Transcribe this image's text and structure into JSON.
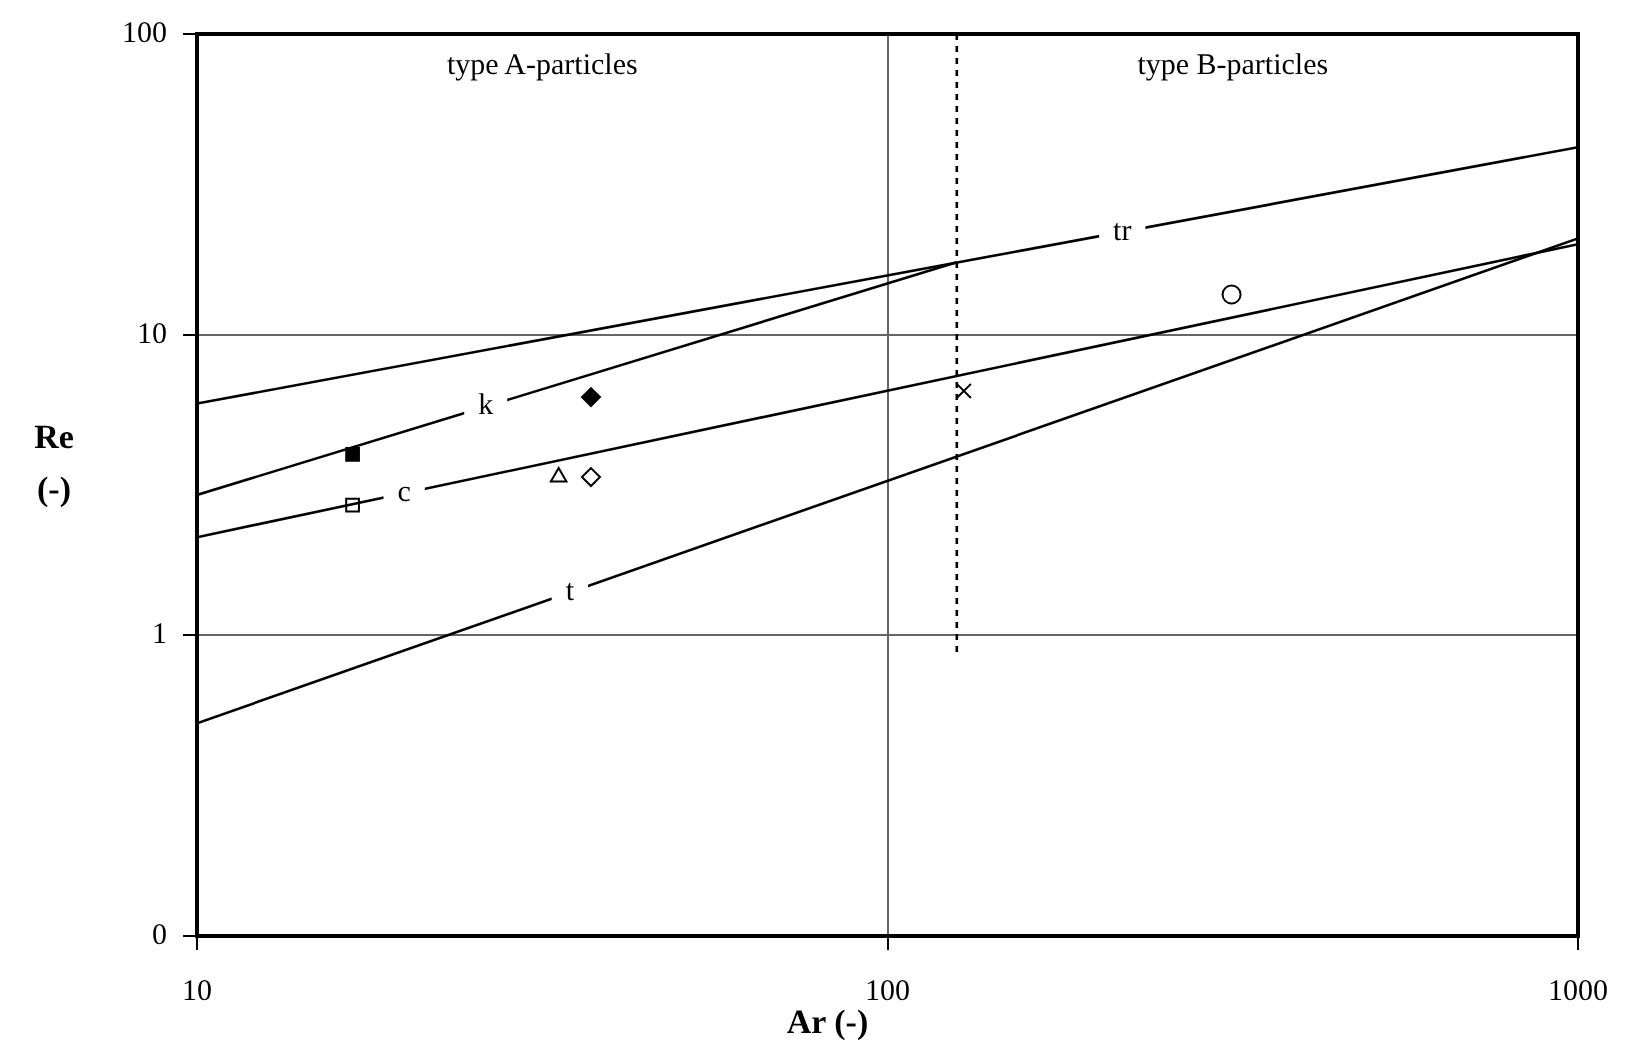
{
  "chart_data": {
    "type": "scatter",
    "xlabel": "Ar (-)",
    "ylabel": "Re (-)",
    "log": "xy",
    "grid": true,
    "legend": false,
    "xlim": [
      10,
      1000
    ],
    "xticks": [
      10,
      100,
      1000
    ],
    "ylim": [
      0.1,
      100
    ],
    "yticks": [
      {
        "value": 0.1,
        "label": "0"
      },
      1,
      10,
      100
    ],
    "annotations": [
      "type A-particles",
      "type B-particles"
    ],
    "series": [
      {
        "name": "tr",
        "type": "line",
        "color": "#000000",
        "marker": "none",
        "line_style": "solid",
        "x": [
          10,
          1000
        ],
        "values": [
          5.9,
          42
        ]
      },
      {
        "name": "k",
        "type": "line",
        "color": "#000000",
        "marker": "none",
        "line_style": "solid",
        "x": [
          10,
          126
        ],
        "values": [
          2.93,
          17.4
        ]
      },
      {
        "name": "c",
        "type": "line",
        "color": "#000000",
        "marker": "none",
        "line_style": "solid",
        "x": [
          10,
          1000
        ],
        "values": [
          2.12,
          20
        ]
      },
      {
        "name": "t",
        "type": "line",
        "color": "#000000",
        "marker": "none",
        "line_style": "solid",
        "x": [
          10,
          1000
        ],
        "values": [
          0.51,
          20.9
        ]
      },
      {
        "type": "line",
        "color": "#000000",
        "marker": "none",
        "line_style": "dotted",
        "x": [
          126,
          126
        ],
        "values": [
          100,
          0.87
        ]
      },
      {
        "type": "scatter",
        "color": "#000000",
        "marker": "square",
        "x": [
          16.8
        ],
        "values": [
          4.0
        ]
      },
      {
        "type": "scatter",
        "color": "#ffffff",
        "marker": "square",
        "x": [
          16.8
        ],
        "values": [
          2.71
        ]
      },
      {
        "type": "scatter",
        "color": "#000000",
        "marker": "diamond",
        "x": [
          37.2
        ],
        "values": [
          6.2
        ]
      },
      {
        "type": "scatter",
        "color": "#ffffff",
        "marker": "triangle",
        "x": [
          33.4
        ],
        "values": [
          3.36
        ]
      },
      {
        "type": "scatter",
        "color": "#ffffff",
        "marker": "diamond",
        "x": [
          37.2
        ],
        "values": [
          3.36
        ]
      },
      {
        "type": "scatter",
        "color": "#000000",
        "marker": "cross",
        "x": [
          129
        ],
        "values": [
          6.5
        ]
      },
      {
        "type": "scatter",
        "color": "#ffffff",
        "marker": "circle",
        "x": [
          315
        ],
        "values": [
          13.6
        ]
      }
    ]
  }
}
